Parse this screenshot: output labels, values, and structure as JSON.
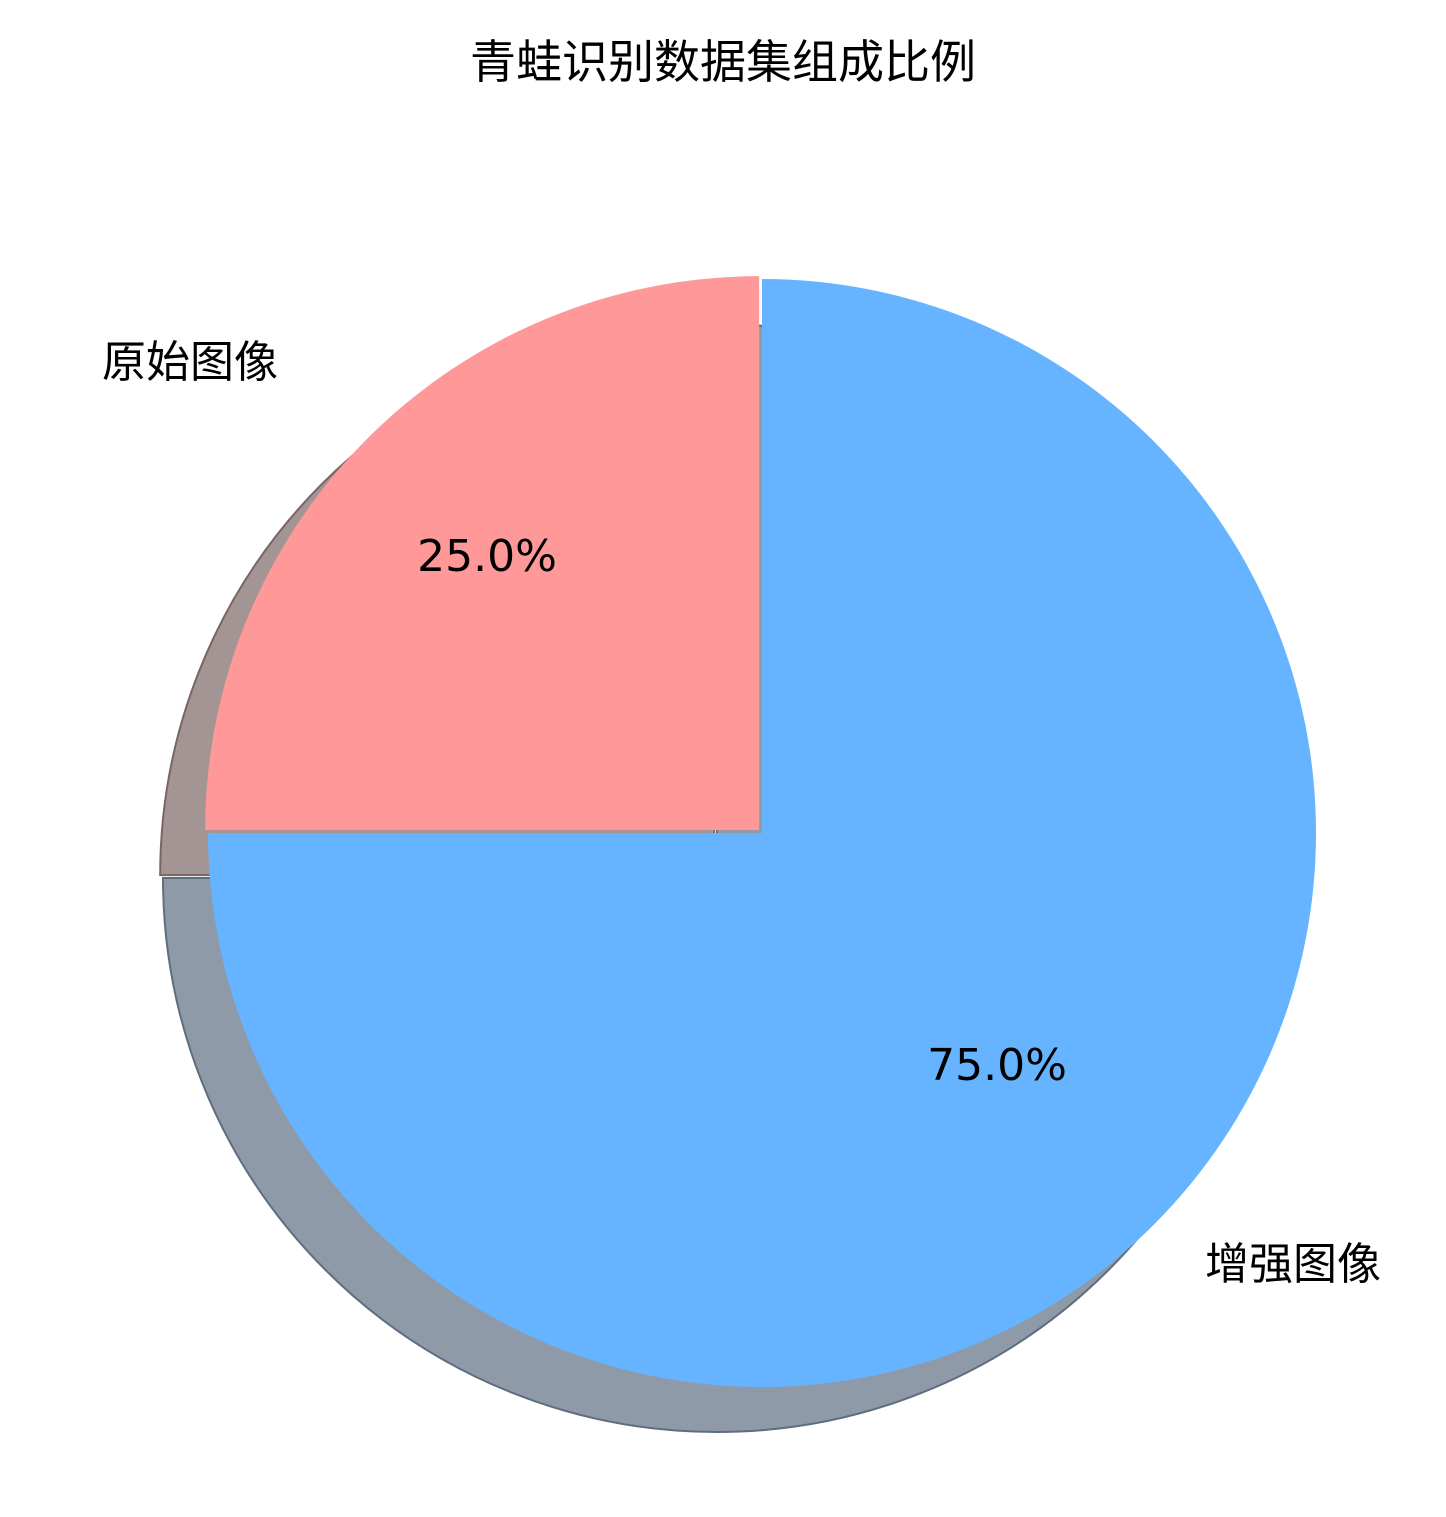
{
  "chart_data": {
    "type": "pie",
    "title": "青蛙识别数据集组成比例",
    "categories": [
      "原始图像",
      "增强图像"
    ],
    "values": [
      25.0,
      75.0
    ],
    "value_labels": [
      "25.0%",
      "75.0%"
    ],
    "colors": [
      "#ff9999",
      "#66b3ff"
    ],
    "explode": [
      0.1,
      0
    ],
    "shadow": true,
    "start_angle": 90,
    "direction": "counterclockwise"
  }
}
